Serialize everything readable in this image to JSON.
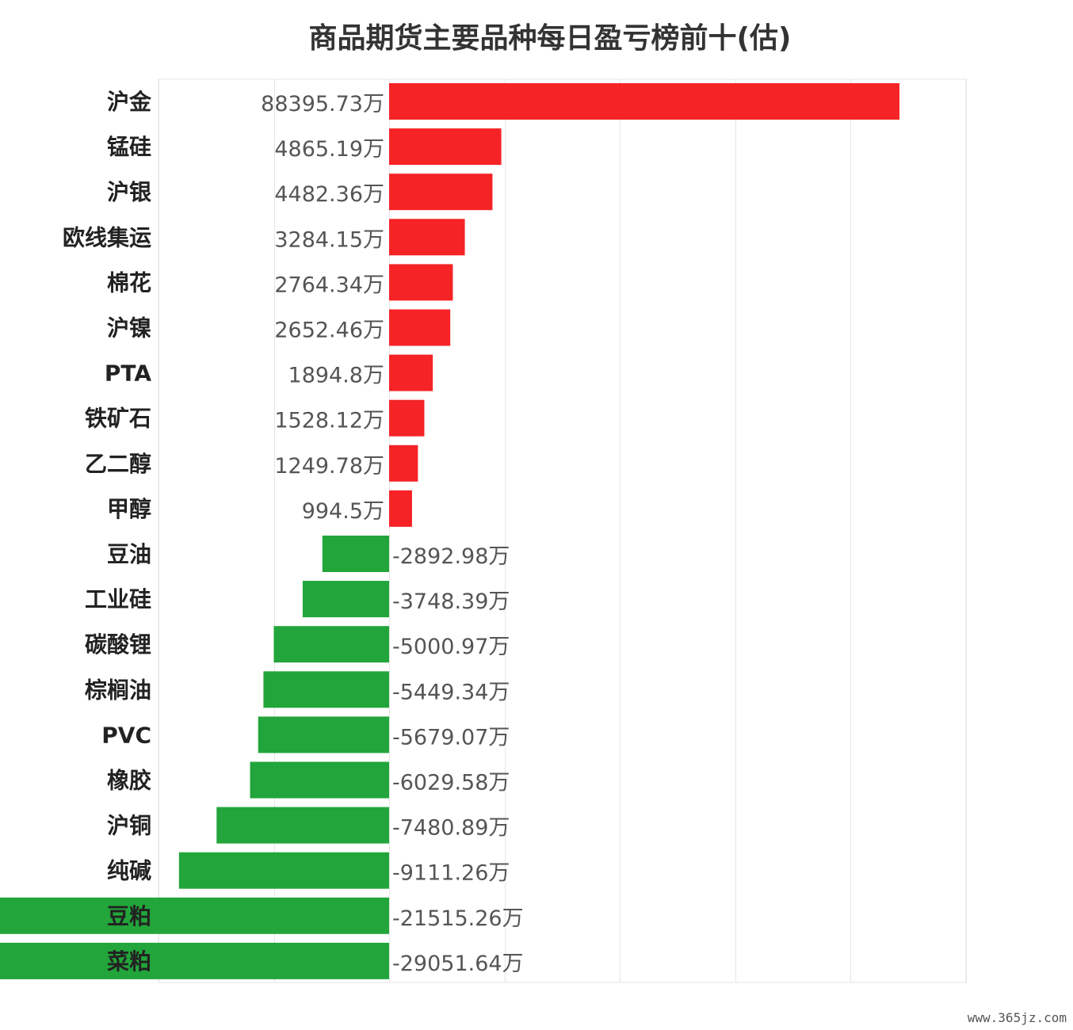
{
  "watermark": "www.365jz.com",
  "chart_data": {
    "type": "bar",
    "orientation": "horizontal",
    "title": "商品期货主要品种每日盈亏榜前十(估)",
    "unit": "万",
    "xlim": [
      -10000,
      25000
    ],
    "grid": true,
    "colors": {
      "positive": "#f52326",
      "negative": "#22a53a"
    },
    "categories": [
      "沪金",
      "锰硅",
      "沪银",
      "欧线集运",
      "棉花",
      "沪镍",
      "PTA",
      "铁矿石",
      "乙二醇",
      "甲醇",
      "豆油",
      "工业硅",
      "碳酸锂",
      "棕榈油",
      "PVC",
      "橡胶",
      "沪铜",
      "纯碱",
      "豆粕",
      "菜粕"
    ],
    "values": [
      88395.73,
      4865.19,
      4482.36,
      3284.15,
      2764.34,
      2652.46,
      1894.8,
      1528.12,
      1249.78,
      994.5,
      -2892.98,
      -3748.39,
      -5000.97,
      -5449.34,
      -5679.07,
      -6029.58,
      -7480.89,
      -9111.26,
      -21515.26,
      -29051.64
    ],
    "value_labels": [
      "88395.73万",
      "4865.19万",
      "4482.36万",
      "3284.15万",
      "2764.34万",
      "2652.46万",
      "1894.8万",
      "1528.12万",
      "1249.78万",
      "994.5万",
      "-2892.98万",
      "-3748.39万",
      "-5000.97万",
      "-5449.34万",
      "-5679.07万",
      "-6029.58万",
      "-7480.89万",
      "-9111.26万",
      "-21515.26万",
      "-29051.64万"
    ]
  }
}
